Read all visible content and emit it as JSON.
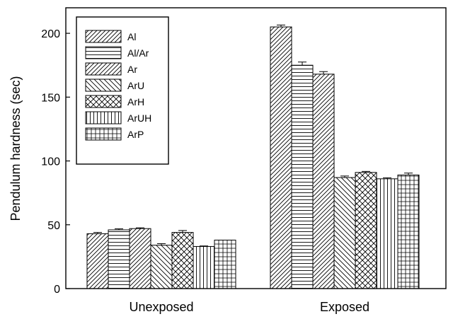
{
  "chart_data": {
    "type": "bar",
    "title": "",
    "xlabel": "",
    "ylabel": "Pendulum hardness (sec)",
    "ylim": [
      0,
      220
    ],
    "yticks": [
      0,
      50,
      100,
      150,
      200
    ],
    "categories": [
      "Unexposed",
      "Exposed"
    ],
    "grid": false,
    "legend_position": "top-left",
    "series": [
      {
        "name": "Al",
        "pattern": "diag-right",
        "values": [
          43,
          205
        ],
        "errors": [
          1,
          1.5
        ]
      },
      {
        "name": "Al/Ar",
        "pattern": "horizontal",
        "values": [
          46,
          175
        ],
        "errors": [
          0.8,
          2.5
        ]
      },
      {
        "name": "Ar",
        "pattern": "diag-right",
        "values": [
          47,
          168
        ],
        "errors": [
          0.6,
          2
        ]
      },
      {
        "name": "ArU",
        "pattern": "diag-left",
        "values": [
          34,
          87
        ],
        "errors": [
          1.2,
          1.2
        ]
      },
      {
        "name": "ArH",
        "pattern": "crosshatch",
        "values": [
          44,
          91
        ],
        "errors": [
          1.5,
          0.8
        ]
      },
      {
        "name": "ArUH",
        "pattern": "vertical",
        "values": [
          33,
          86
        ],
        "errors": [
          0.4,
          0.8
        ]
      },
      {
        "name": "ArP",
        "pattern": "grid",
        "values": [
          38,
          89
        ],
        "errors": [
          0,
          1.5
        ]
      }
    ]
  }
}
